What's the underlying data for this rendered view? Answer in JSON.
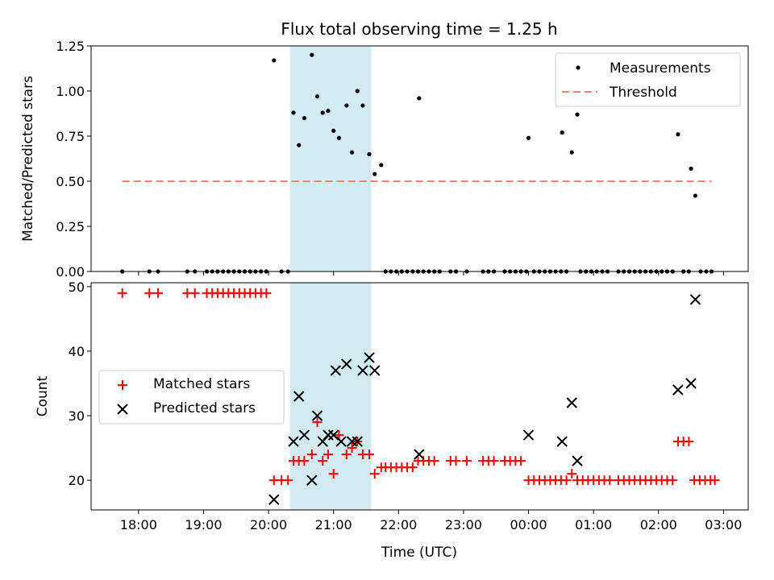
{
  "chart_data": [
    {
      "type": "scatter",
      "title": "Flux total observing time = 1.25 h",
      "xlabel": "",
      "ylabel": "Matched/Predicted stars",
      "ylim": [
        0,
        1.25
      ],
      "yticks": [
        "0.00",
        "0.25",
        "0.50",
        "0.75",
        "1.00",
        "1.25"
      ],
      "xlim_hours": [
        17.27,
        27.38
      ],
      "shaded_span_hours": [
        20.33,
        21.58
      ],
      "shade_color": "#add8e6",
      "legend": {
        "position": "top-right",
        "entries": [
          "Measurements",
          "Threshold"
        ]
      },
      "series": [
        {
          "name": "Measurements",
          "marker": "dot",
          "color": "#000000",
          "points": [
            [
              "17:45",
              0
            ],
            [
              "18:10",
              0
            ],
            [
              "18:18",
              0
            ],
            [
              "18:45",
              0
            ],
            [
              "18:52",
              0
            ],
            [
              "19:03",
              0
            ],
            [
              "19:08",
              0
            ],
            [
              "19:13",
              0
            ],
            [
              "19:18",
              0
            ],
            [
              "19:23",
              0
            ],
            [
              "19:28",
              0
            ],
            [
              "19:33",
              0
            ],
            [
              "19:38",
              0
            ],
            [
              "19:43",
              0
            ],
            [
              "19:48",
              0
            ],
            [
              "19:53",
              0
            ],
            [
              "19:58",
              0
            ],
            [
              "20:05",
              1.17
            ],
            [
              "20:12",
              0
            ],
            [
              "20:18",
              0
            ],
            [
              "20:23",
              0.88
            ],
            [
              "20:28",
              0.7
            ],
            [
              "20:33",
              0.85
            ],
            [
              "20:40",
              1.2
            ],
            [
              "20:45",
              0.97
            ],
            [
              "20:50",
              0.88
            ],
            [
              "20:55",
              0.89
            ],
            [
              "21:00",
              0.78
            ],
            [
              "21:05",
              0.74
            ],
            [
              "21:12",
              0.92
            ],
            [
              "21:17",
              0.66
            ],
            [
              "21:22",
              1.0
            ],
            [
              "21:27",
              0.92
            ],
            [
              "21:33",
              0.65
            ],
            [
              "21:38",
              0.54
            ],
            [
              "21:44",
              0.59
            ],
            [
              "21:48",
              0
            ],
            [
              "21:53",
              0
            ],
            [
              "21:58",
              0
            ],
            [
              "22:03",
              0
            ],
            [
              "22:08",
              0
            ],
            [
              "22:13",
              0
            ],
            [
              "22:18",
              0
            ],
            [
              "22:23",
              0
            ],
            [
              "22:19",
              0.96
            ],
            [
              "22:28",
              0
            ],
            [
              "22:33",
              0
            ],
            [
              "22:38",
              0
            ],
            [
              "22:48",
              0
            ],
            [
              "22:53",
              0
            ],
            [
              "23:03",
              0
            ],
            [
              "23:18",
              0
            ],
            [
              "23:23",
              0
            ],
            [
              "23:28",
              0
            ],
            [
              "23:38",
              0
            ],
            [
              "23:43",
              0
            ],
            [
              "23:48",
              0
            ],
            [
              "23:53",
              0
            ],
            [
              "23:58",
              0
            ],
            [
              "00:00",
              0.74
            ],
            [
              "00:05",
              0
            ],
            [
              "00:10",
              0
            ],
            [
              "00:15",
              0
            ],
            [
              "00:20",
              0
            ],
            [
              "00:25",
              0
            ],
            [
              "00:30",
              0
            ],
            [
              "00:31",
              0.77
            ],
            [
              "00:40",
              0.66
            ],
            [
              "00:45",
              0.87
            ],
            [
              "00:35",
              0
            ],
            [
              "00:48",
              0
            ],
            [
              "00:53",
              0
            ],
            [
              "00:58",
              0
            ],
            [
              "01:03",
              0
            ],
            [
              "01:08",
              0
            ],
            [
              "01:13",
              0
            ],
            [
              "01:23",
              0
            ],
            [
              "01:28",
              0
            ],
            [
              "01:33",
              0
            ],
            [
              "01:38",
              0
            ],
            [
              "01:43",
              0
            ],
            [
              "01:48",
              0
            ],
            [
              "01:53",
              0
            ],
            [
              "01:58",
              0
            ],
            [
              "02:03",
              0
            ],
            [
              "02:08",
              0
            ],
            [
              "02:13",
              0
            ],
            [
              "02:23",
              0
            ],
            [
              "02:28",
              0
            ],
            [
              "02:18",
              0.76
            ],
            [
              "02:30",
              0.57
            ],
            [
              "02:34",
              0.42
            ],
            [
              "02:39",
              0
            ],
            [
              "02:44",
              0
            ],
            [
              "02:49",
              0
            ]
          ]
        },
        {
          "name": "Threshold",
          "style": "dashed",
          "color": "#ff7f7f",
          "points": [
            [
              "17:45",
              0.5
            ],
            [
              "02:49",
              0.5
            ]
          ]
        }
      ]
    },
    {
      "type": "scatter",
      "title": "",
      "xlabel": "Time (UTC)",
      "ylabel": "Count",
      "ylim": [
        15.4,
        50.6
      ],
      "yticks": [
        "20",
        "30",
        "40",
        "50"
      ],
      "xticks": [
        "18:00",
        "19:00",
        "20:00",
        "21:00",
        "22:00",
        "23:00",
        "00:00",
        "01:00",
        "02:00",
        "03:00"
      ],
      "xlim_hours": [
        17.27,
        27.38
      ],
      "shaded_span_hours": [
        20.33,
        21.58
      ],
      "shade_color": "#add8e6",
      "legend": {
        "position": "center-left",
        "entries": [
          "Matched stars",
          "Predicted stars"
        ]
      },
      "series": [
        {
          "name": "Matched stars",
          "marker": "plus",
          "color": "#ff0000",
          "points": [
            [
              "17:45",
              49
            ],
            [
              "18:10",
              49
            ],
            [
              "18:18",
              49
            ],
            [
              "18:45",
              49
            ],
            [
              "18:52",
              49
            ],
            [
              "19:03",
              49
            ],
            [
              "19:08",
              49
            ],
            [
              "19:13",
              49
            ],
            [
              "19:18",
              49
            ],
            [
              "19:23",
              49
            ],
            [
              "19:28",
              49
            ],
            [
              "19:33",
              49
            ],
            [
              "19:38",
              49
            ],
            [
              "19:43",
              49
            ],
            [
              "19:48",
              49
            ],
            [
              "19:53",
              49
            ],
            [
              "19:58",
              49
            ],
            [
              "20:05",
              20
            ],
            [
              "20:12",
              20
            ],
            [
              "20:18",
              20
            ],
            [
              "20:23",
              23
            ],
            [
              "20:28",
              23
            ],
            [
              "20:33",
              23
            ],
            [
              "20:40",
              24
            ],
            [
              "20:45",
              29
            ],
            [
              "20:50",
              23
            ],
            [
              "20:55",
              24
            ],
            [
              "21:00",
              21
            ],
            [
              "21:05",
              27
            ],
            [
              "21:12",
              24
            ],
            [
              "21:17",
              25
            ],
            [
              "21:22",
              26
            ],
            [
              "21:27",
              24
            ],
            [
              "21:33",
              24
            ],
            [
              "21:38",
              21
            ],
            [
              "21:44",
              22
            ],
            [
              "21:48",
              22
            ],
            [
              "21:53",
              22
            ],
            [
              "21:58",
              22
            ],
            [
              "22:03",
              22
            ],
            [
              "22:08",
              22
            ],
            [
              "22:13",
              22
            ],
            [
              "22:18",
              23
            ],
            [
              "22:23",
              23
            ],
            [
              "22:28",
              23
            ],
            [
              "22:33",
              23
            ],
            [
              "22:48",
              23
            ],
            [
              "22:53",
              23
            ],
            [
              "23:03",
              23
            ],
            [
              "23:18",
              23
            ],
            [
              "23:23",
              23
            ],
            [
              "23:28",
              23
            ],
            [
              "23:38",
              23
            ],
            [
              "23:43",
              23
            ],
            [
              "23:48",
              23
            ],
            [
              "23:53",
              23
            ],
            [
              "00:00",
              20
            ],
            [
              "00:05",
              20
            ],
            [
              "00:10",
              20
            ],
            [
              "00:15",
              20
            ],
            [
              "00:20",
              20
            ],
            [
              "00:25",
              20
            ],
            [
              "00:30",
              20
            ],
            [
              "00:35",
              20
            ],
            [
              "00:40",
              21
            ],
            [
              "00:45",
              20
            ],
            [
              "00:50",
              20
            ],
            [
              "00:55",
              20
            ],
            [
              "01:00",
              20
            ],
            [
              "01:05",
              20
            ],
            [
              "01:10",
              20
            ],
            [
              "01:15",
              20
            ],
            [
              "01:23",
              20
            ],
            [
              "01:28",
              20
            ],
            [
              "01:33",
              20
            ],
            [
              "01:38",
              20
            ],
            [
              "01:43",
              20
            ],
            [
              "01:48",
              20
            ],
            [
              "01:53",
              20
            ],
            [
              "01:58",
              20
            ],
            [
              "02:03",
              20
            ],
            [
              "02:08",
              20
            ],
            [
              "02:13",
              20
            ],
            [
              "02:18",
              26
            ],
            [
              "02:23",
              26
            ],
            [
              "02:28",
              26
            ],
            [
              "02:33",
              20
            ],
            [
              "02:38",
              20
            ],
            [
              "02:43",
              20
            ],
            [
              "02:48",
              20
            ],
            [
              "02:52",
              20
            ]
          ]
        },
        {
          "name": "Predicted stars",
          "marker": "x",
          "color": "#000000",
          "points": [
            [
              "20:05",
              17
            ],
            [
              "20:23",
              26
            ],
            [
              "20:28",
              33
            ],
            [
              "20:33",
              27
            ],
            [
              "20:40",
              20
            ],
            [
              "20:45",
              30
            ],
            [
              "20:50",
              26
            ],
            [
              "20:55",
              27
            ],
            [
              "21:00",
              27
            ],
            [
              "21:02",
              37
            ],
            [
              "21:07",
              26
            ],
            [
              "21:12",
              38
            ],
            [
              "21:17",
              26
            ],
            [
              "21:22",
              26
            ],
            [
              "21:27",
              37
            ],
            [
              "21:33",
              39
            ],
            [
              "21:38",
              37
            ],
            [
              "22:19",
              24
            ],
            [
              "00:00",
              27
            ],
            [
              "00:31",
              26
            ],
            [
              "00:40",
              32
            ],
            [
              "00:45",
              23
            ],
            [
              "02:18",
              34
            ],
            [
              "02:30",
              35
            ],
            [
              "02:34",
              48
            ]
          ]
        }
      ]
    }
  ]
}
